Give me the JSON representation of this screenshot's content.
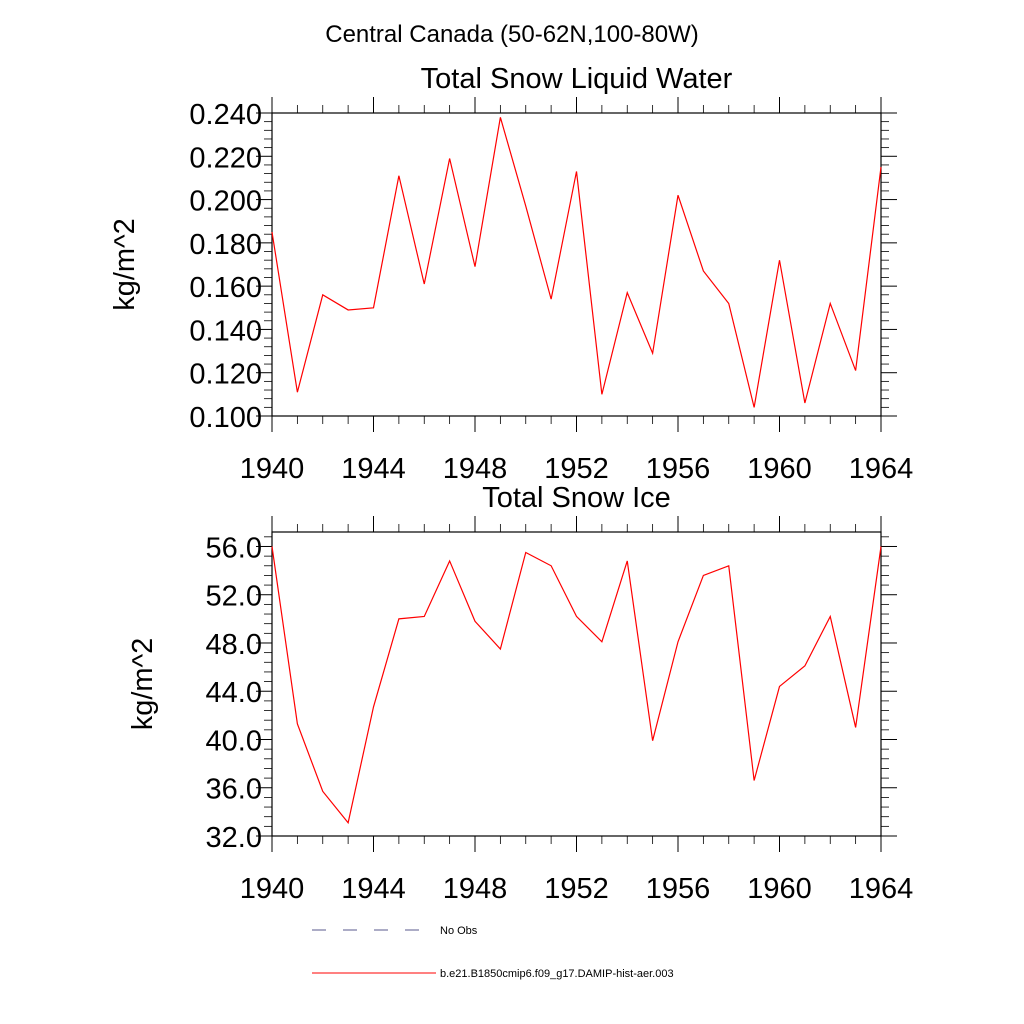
{
  "figure": {
    "suptitle": "Central Canada (50-62N,100-80W)"
  },
  "chart_data": [
    {
      "type": "line",
      "title": "Total Snow Liquid Water",
      "xlabel": "",
      "ylabel": "kg/m^2",
      "xlim": [
        1940,
        1964
      ],
      "ylim": [
        0.1,
        0.24
      ],
      "x_ticks": [
        1940,
        1944,
        1948,
        1952,
        1956,
        1960,
        1964
      ],
      "x_tick_labels": [
        "1940",
        "1944",
        "1948",
        "1952",
        "1956",
        "1960",
        "1964"
      ],
      "y_ticks": [
        0.1,
        0.12,
        0.14,
        0.16,
        0.18,
        0.2,
        0.22,
        0.24
      ],
      "y_tick_labels": [
        "0.100",
        "0.120",
        "0.140",
        "0.160",
        "0.180",
        "0.200",
        "0.220",
        "0.240"
      ],
      "grid": false,
      "x": [
        1940,
        1941,
        1942,
        1943,
        1944,
        1945,
        1946,
        1947,
        1948,
        1949,
        1950,
        1951,
        1952,
        1953,
        1954,
        1955,
        1956,
        1957,
        1958,
        1959,
        1960,
        1961,
        1962,
        1963,
        1964
      ],
      "series": [
        {
          "name": "b.e21.B1850cmip6.f09_g17.DAMIP-hist-aer.003",
          "color": "#ff0000",
          "values": [
            0.185,
            0.111,
            0.156,
            0.149,
            0.15,
            0.211,
            0.161,
            0.219,
            0.169,
            0.238,
            0.197,
            0.154,
            0.213,
            0.11,
            0.157,
            0.129,
            0.202,
            0.167,
            0.152,
            0.104,
            0.172,
            0.106,
            0.152,
            0.121,
            0.215
          ]
        }
      ]
    },
    {
      "type": "line",
      "title": "Total Snow Ice",
      "xlabel": "",
      "ylabel": "kg/m^2",
      "xlim": [
        1940,
        1964
      ],
      "ylim": [
        32.0,
        57.2
      ],
      "x_ticks": [
        1940,
        1944,
        1948,
        1952,
        1956,
        1960,
        1964
      ],
      "x_tick_labels": [
        "1940",
        "1944",
        "1948",
        "1952",
        "1956",
        "1960",
        "1964"
      ],
      "y_ticks": [
        32,
        36,
        40,
        44,
        48,
        52,
        56
      ],
      "y_tick_labels": [
        "32.0",
        "36.0",
        "40.0",
        "44.0",
        "48.0",
        "52.0",
        "56.0"
      ],
      "grid": false,
      "x": [
        1940,
        1941,
        1942,
        1943,
        1944,
        1945,
        1946,
        1947,
        1948,
        1949,
        1950,
        1951,
        1952,
        1953,
        1954,
        1955,
        1956,
        1957,
        1958,
        1959,
        1960,
        1961,
        1962,
        1963,
        1964
      ],
      "series": [
        {
          "name": "b.e21.B1850cmip6.f09_g17.DAMIP-hist-aer.003",
          "color": "#ff0000",
          "values": [
            56.0,
            41.3,
            35.7,
            33.1,
            42.7,
            50.0,
            50.2,
            54.8,
            49.8,
            47.5,
            55.5,
            54.4,
            50.2,
            48.1,
            54.8,
            39.9,
            48.1,
            53.6,
            54.4,
            36.6,
            44.4,
            46.1,
            50.2,
            41.0,
            56.0
          ]
        }
      ]
    }
  ],
  "legend": {
    "placement": "bottom",
    "items": [
      {
        "label": "No Obs",
        "color": "#5a5a8c",
        "style": "dashed"
      },
      {
        "label": "b.e21.B1850cmip6.f09_g17.DAMIP-hist-aer.003",
        "color": "#ff0000",
        "style": "solid"
      }
    ]
  }
}
